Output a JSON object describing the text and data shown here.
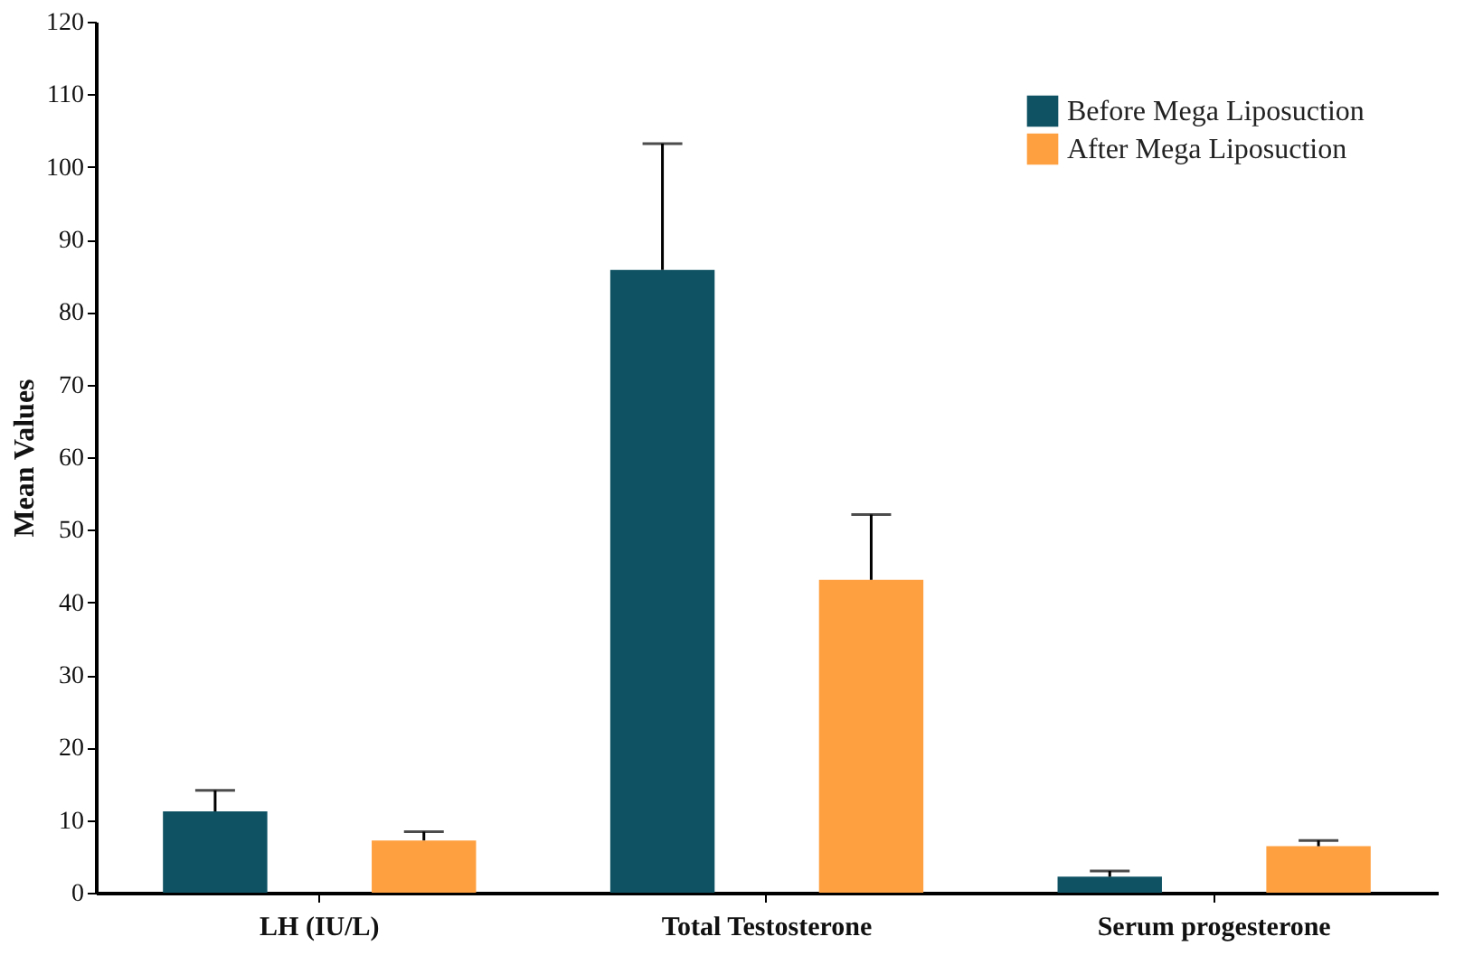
{
  "chart_data": {
    "type": "bar",
    "ylabel": "Mean Values",
    "categories": [
      "LH (IU/L)",
      "Total Testosterone",
      "Serum progesterone"
    ],
    "series": [
      {
        "name": "Before Mega Liposuction",
        "color": "#0e5263",
        "values": [
          11.2,
          85.8,
          2.2
        ],
        "errors": [
          [
            11.2,
            14.1
          ],
          [
            85.8,
            103.2
          ],
          [
            2.2,
            3.0
          ]
        ]
      },
      {
        "name": "After Mega Liposuction",
        "color": "#ffa040",
        "values": [
          7.2,
          43.1,
          6.4
        ],
        "errors": [
          [
            7.2,
            8.4
          ],
          [
            43.1,
            52.1
          ],
          [
            6.4,
            7.2
          ]
        ]
      }
    ],
    "ylim": [
      0,
      120
    ],
    "yticks": [
      0,
      10,
      20,
      30,
      40,
      50,
      60,
      70,
      80,
      90,
      100,
      110,
      120
    ],
    "grid": false,
    "legend": "top right"
  }
}
